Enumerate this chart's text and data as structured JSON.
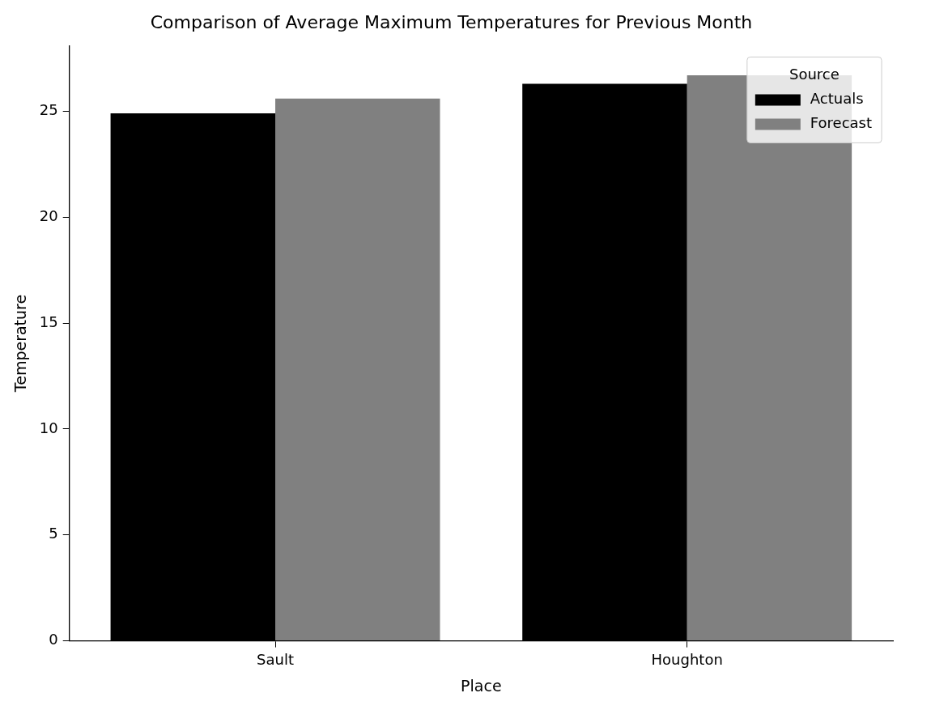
{
  "chart_data": {
    "type": "bar",
    "title": "Comparison of Average Maximum Temperatures for Previous Month",
    "xlabel": "Place",
    "ylabel": "Temperature",
    "legend_title": "Source",
    "categories": [
      "Sault",
      "Houghton"
    ],
    "series": [
      {
        "name": "Actuals",
        "color": "#000000",
        "values": [
          24.9,
          26.3
        ]
      },
      {
        "name": "Forecast",
        "color": "#808080",
        "values": [
          25.6,
          26.7
        ]
      }
    ],
    "ylim": [
      0,
      28.1
    ],
    "yticks": [
      0,
      5,
      10,
      15,
      20,
      25
    ],
    "grid": false,
    "legend": "top right"
  }
}
